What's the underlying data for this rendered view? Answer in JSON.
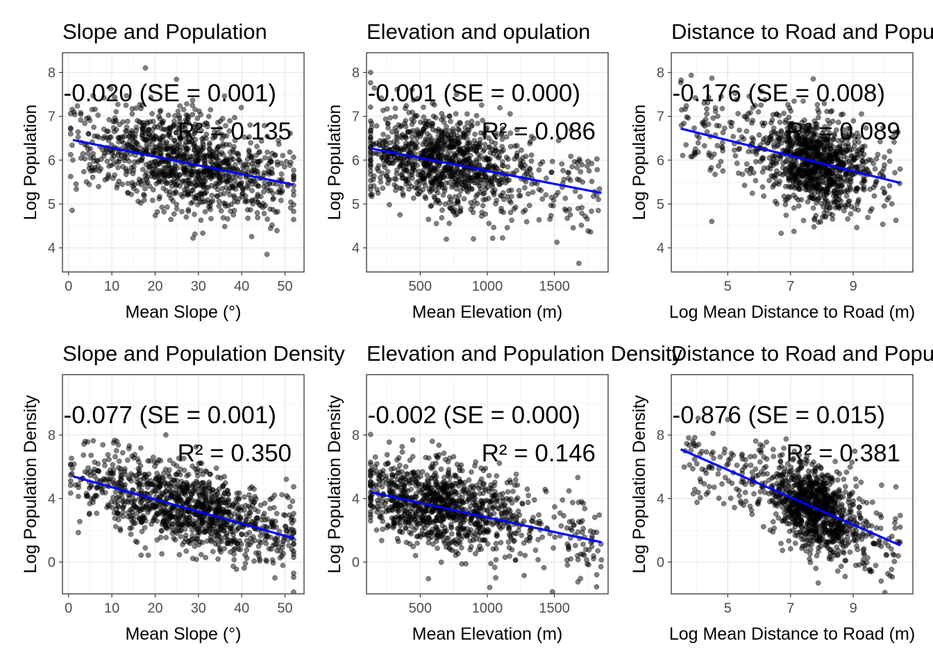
{
  "chart_data": [
    {
      "type": "scatter",
      "title": "Slope and Population",
      "xlabel": "Mean Slope (°)",
      "ylabel": "Log Population",
      "xlim": [
        -1.4,
        54.4
      ],
      "ylim": [
        3.45,
        8.45
      ],
      "xticks": [
        0,
        10,
        20,
        30,
        40,
        50
      ],
      "yticks": [
        4,
        5,
        6,
        7,
        8
      ],
      "annotation_coef": "-0.020 (SE = 0.001)",
      "annotation_r2": "R² = 0.135",
      "fit": {
        "x": [
          1,
          52
        ],
        "y": [
          6.46,
          5.44
        ]
      },
      "cloud": {
        "x_range": [
          0.5,
          52
        ],
        "center": [
          28,
          5.8
        ],
        "spread": [
          11,
          0.55
        ]
      },
      "grid": true,
      "point_color": "#000000",
      "point_alpha": 0.5,
      "fit_color": "#0000ff"
    },
    {
      "type": "scatter",
      "title": "Elevation and opulation",
      "xlabel": "Mean Elevation (m)",
      "ylabel": "Log Population",
      "xlim": [
        100,
        1900
      ],
      "ylim": [
        3.45,
        8.45
      ],
      "xticks": [
        500,
        1000,
        1500
      ],
      "yticks": [
        4,
        5,
        6,
        7,
        8
      ],
      "annotation_coef": "-0.001 (SE = 0.000)",
      "annotation_r2": "R² = 0.086",
      "fit": {
        "x": [
          130,
          1850
        ],
        "y": [
          6.27,
          5.25
        ]
      },
      "cloud": {
        "x_range": [
          130,
          1850
        ],
        "center": [
          650,
          5.9
        ],
        "spread": [
          300,
          0.55
        ]
      },
      "grid": true,
      "point_color": "#000000",
      "point_alpha": 0.5,
      "fit_color": "#0000ff"
    },
    {
      "type": "scatter",
      "title": "Distance to Road and Population",
      "xlabel": "Log Mean Distance to Road (m)",
      "ylabel": "Log Population",
      "xlim": [
        3.2,
        10.9
      ],
      "ylim": [
        3.45,
        8.45
      ],
      "xticks": [
        5,
        7,
        9
      ],
      "yticks": [
        4,
        5,
        6,
        7,
        8
      ],
      "annotation_coef": "-0.176 (SE = 0.008)",
      "annotation_r2": "R² = 0.089",
      "fit": {
        "x": [
          3.5,
          10.5
        ],
        "y": [
          6.72,
          5.48
        ]
      },
      "cloud": {
        "x_range": [
          3.5,
          10.5
        ],
        "center": [
          7.8,
          5.9
        ],
        "spread": [
          0.75,
          0.55
        ]
      },
      "grid": true,
      "point_color": "#000000",
      "point_alpha": 0.5,
      "fit_color": "#0000ff"
    },
    {
      "type": "scatter",
      "title": "Slope and Population Density",
      "xlabel": "Mean Slope (°)",
      "ylabel": "Log Population Density",
      "xlim": [
        -1.4,
        54.4
      ],
      "ylim": [
        -2,
        11.8
      ],
      "xticks": [
        0,
        10,
        20,
        30,
        40,
        50
      ],
      "yticks": [
        0,
        4,
        8
      ],
      "annotation_coef": "-0.077 (SE = 0.001)",
      "annotation_r2": "R² = 0.350",
      "fit": {
        "x": [
          1,
          52
        ],
        "y": [
          5.4,
          1.5
        ]
      },
      "cloud": {
        "x_range": [
          0.5,
          52
        ],
        "center": [
          28,
          3.2
        ],
        "spread": [
          11,
          1.3
        ]
      },
      "grid": true,
      "point_color": "#000000",
      "point_alpha": 0.5,
      "fit_color": "#0000ff"
    },
    {
      "type": "scatter",
      "title": "Elevation and Population Density",
      "xlabel": "Mean Elevation (m)",
      "ylabel": "Log Population Density",
      "xlim": [
        100,
        1900
      ],
      "ylim": [
        -2,
        11.8
      ],
      "xticks": [
        500,
        1000,
        1500
      ],
      "yticks": [
        0,
        4,
        8
      ],
      "annotation_coef": "-0.002 (SE = 0.000)",
      "annotation_r2": "R² = 0.146",
      "fit": {
        "x": [
          130,
          1850
        ],
        "y": [
          4.4,
          1.25
        ]
      },
      "cloud": {
        "x_range": [
          130,
          1850
        ],
        "center": [
          650,
          3.2
        ],
        "spread": [
          300,
          1.4
        ]
      },
      "grid": true,
      "point_color": "#000000",
      "point_alpha": 0.5,
      "fit_color": "#0000ff"
    },
    {
      "type": "scatter",
      "title": "Distance to Road and Population Density",
      "xlabel": "Log Mean Distance to Road (m)",
      "ylabel": "Log Population Density",
      "xlim": [
        3.2,
        10.9
      ],
      "ylim": [
        -2,
        11.8
      ],
      "xticks": [
        5,
        7,
        9
      ],
      "yticks": [
        0,
        4,
        8
      ],
      "annotation_coef": "-0.876 (SE = 0.015)",
      "annotation_r2": "R² = 0.381",
      "fit": {
        "x": [
          3.5,
          10.5
        ],
        "y": [
          7.1,
          1.05
        ]
      },
      "cloud": {
        "x_range": [
          3.5,
          10.5
        ],
        "center": [
          7.8,
          3.0
        ],
        "spread": [
          0.75,
          1.3
        ]
      },
      "grid": true,
      "point_color": "#000000",
      "point_alpha": 0.5,
      "fit_color": "#0000ff"
    }
  ]
}
